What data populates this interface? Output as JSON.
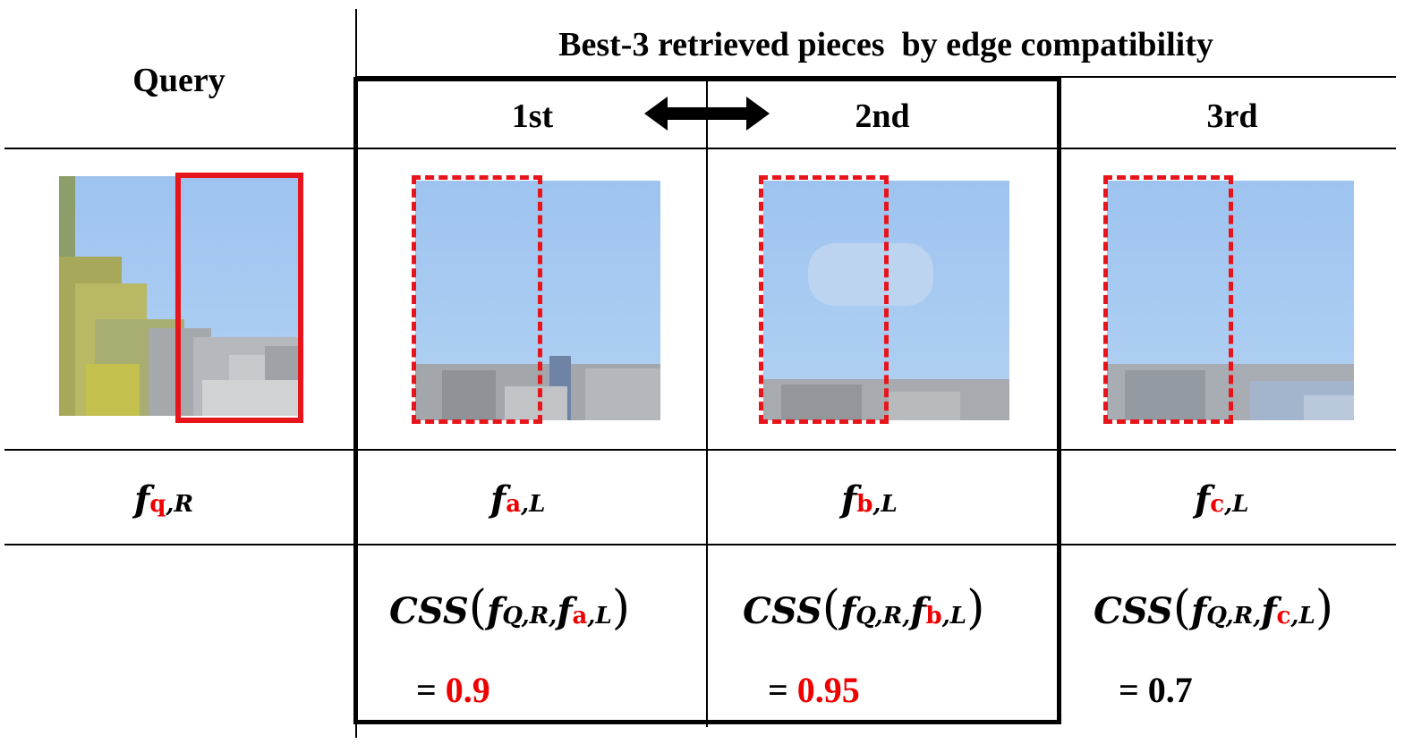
{
  "header": {
    "query_label": "Query",
    "group_title": "Best-3 retrieved pieces  by edge compatibility",
    "ranks": [
      "1st",
      "2nd",
      "3rd"
    ]
  },
  "features": {
    "query": {
      "base": "f",
      "sub": "q",
      "side": ",R"
    },
    "first": {
      "base": "f",
      "sub": "a",
      "side": ",L"
    },
    "second": {
      "base": "f",
      "sub": "b",
      "side": ",L"
    },
    "third": {
      "base": "f",
      "sub": "c",
      "side": ",L"
    }
  },
  "scores": [
    {
      "fn": "CSS",
      "open": "(",
      "q_base": "f",
      "q_sub": "Q,R",
      "comma": ",",
      "p_base": "f",
      "p_sub": "a",
      "p_side": ",L",
      "close": ")",
      "eq": "=",
      "value": "0.9",
      "value_color": "#ee0000"
    },
    {
      "fn": "CSS",
      "open": "(",
      "q_base": "f",
      "q_sub": "Q,R",
      "comma": ",",
      "p_base": "f",
      "p_sub": "b",
      "p_side": ",L",
      "close": ")",
      "eq": "=",
      "value": "0.95",
      "value_color": "#ee0000"
    },
    {
      "fn": "CSS",
      "open": "(",
      "q_base": "f",
      "q_sub": "Q,R",
      "comma": ",",
      "p_base": "f",
      "p_sub": "c",
      "p_side": ",L",
      "close": ")",
      "eq": "=",
      "value": "0.7",
      "value_color": "#000000"
    }
  ],
  "colors": {
    "highlight_red": "#e8141c",
    "sky_blue": "#a8c8ee",
    "line": "#000000"
  },
  "icons": {
    "swap": "double-headed-arrow-icon"
  }
}
